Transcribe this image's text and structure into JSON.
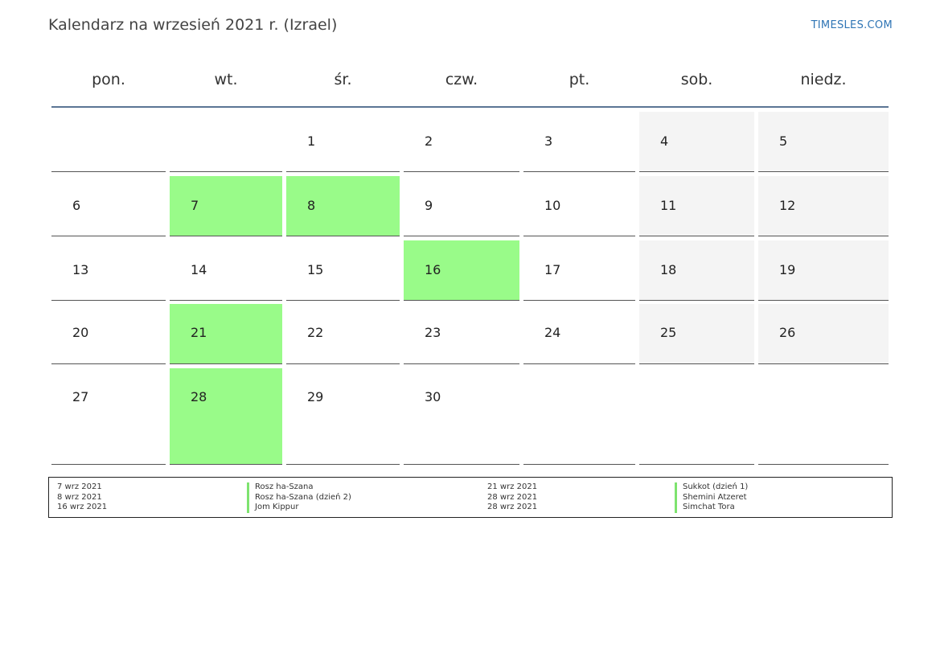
{
  "header": {
    "title": "Kalendarz na wrzesień 2021 r. (Izrael)",
    "brand": "TIMESLES.COM"
  },
  "calendar": {
    "weekdays": [
      "pon.",
      "wt.",
      "śr.",
      "czw.",
      "pt.",
      "sob.",
      "niedz."
    ],
    "weeks": [
      [
        "",
        "",
        "1",
        "2",
        "3",
        "4",
        "5"
      ],
      [
        "6",
        "7",
        "8",
        "9",
        "10",
        "11",
        "12"
      ],
      [
        "13",
        "14",
        "15",
        "16",
        "17",
        "18",
        "19"
      ],
      [
        "20",
        "21",
        "22",
        "23",
        "24",
        "25",
        "26"
      ],
      [
        "27",
        "28",
        "29",
        "30",
        "",
        "",
        ""
      ]
    ],
    "holiday_days": [
      "7",
      "8",
      "16",
      "21",
      "28"
    ],
    "colors": {
      "holiday": "#99fb89",
      "weekend": "#f4f4f4",
      "header_line": "#5b7594"
    }
  },
  "legend": {
    "left": [
      {
        "date": "7 wrz 2021",
        "name": "Rosz ha-Szana"
      },
      {
        "date": "8 wrz 2021",
        "name": "Rosz ha-Szana (dzień 2)"
      },
      {
        "date": "16 wrz 2021",
        "name": "Jom Kippur"
      }
    ],
    "right": [
      {
        "date": "21 wrz 2021",
        "name": "Sukkot (dzień 1)"
      },
      {
        "date": "28 wrz 2021",
        "name": "Shemini Atzeret"
      },
      {
        "date": "28 wrz 2021",
        "name": "Simchat Tora"
      }
    ]
  }
}
